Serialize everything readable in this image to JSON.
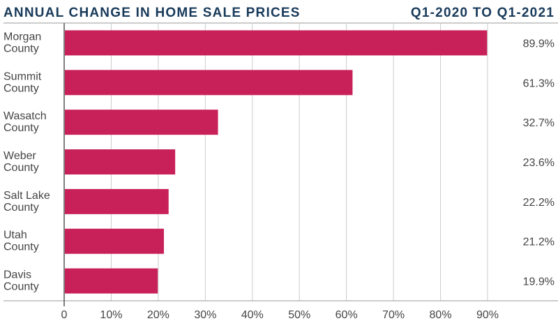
{
  "chart_data": {
    "type": "bar",
    "orientation": "horizontal",
    "title": "ANNUAL CHANGE IN HOME SALE PRICES",
    "subtitle": "Q1-2020 TO Q1-2021",
    "categories": [
      [
        "Morgan",
        "County"
      ],
      [
        "Summit",
        "County"
      ],
      [
        "Wasatch",
        "County"
      ],
      [
        "Weber",
        "County"
      ],
      [
        "Salt Lake",
        "County"
      ],
      [
        "Utah",
        "County"
      ],
      [
        "Davis",
        "County"
      ]
    ],
    "values": [
      89.9,
      61.3,
      32.7,
      23.6,
      22.2,
      21.2,
      19.9
    ],
    "value_labels": [
      "89.9%",
      "61.3%",
      "32.7%",
      "23.6%",
      "22.2%",
      "21.2%",
      "19.9%"
    ],
    "xticks": [
      0,
      10,
      20,
      30,
      40,
      50,
      60,
      70,
      80,
      90
    ],
    "xtick_labels": [
      "0",
      "10%",
      "20%",
      "30%",
      "40%",
      "50%",
      "60%",
      "70%",
      "80%",
      "90%"
    ],
    "xlim": [
      0,
      90
    ],
    "grid": true,
    "bar_color": "#c8215a",
    "title_color": "#183a5a"
  }
}
